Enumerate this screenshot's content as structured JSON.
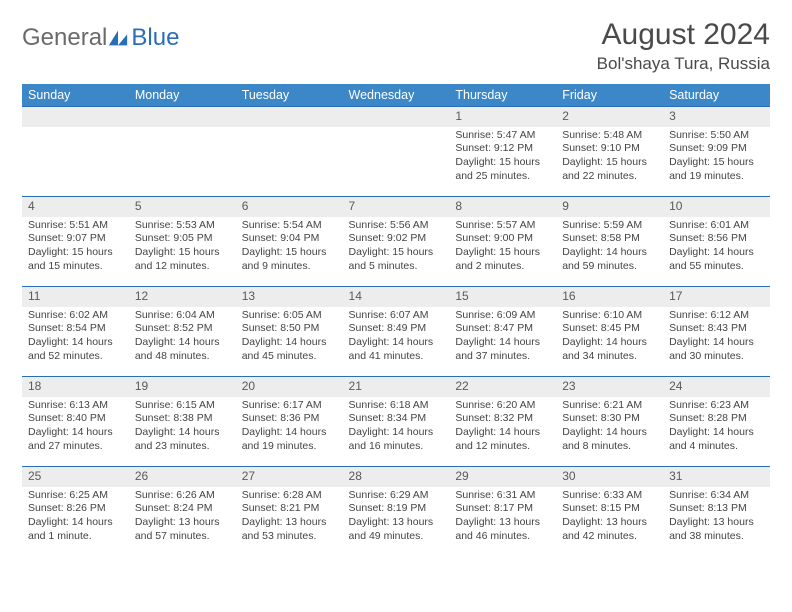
{
  "brand": {
    "general": "General",
    "blue": "Blue"
  },
  "header": {
    "title": "August 2024",
    "location": "Bol'shaya Tura, Russia"
  },
  "colors": {
    "header_bg": "#3b87c8",
    "header_text": "#ffffff",
    "daynum_bg": "#ededed",
    "rule": "#2a6db8",
    "body_text": "#444444"
  },
  "weekdays": [
    "Sunday",
    "Monday",
    "Tuesday",
    "Wednesday",
    "Thursday",
    "Friday",
    "Saturday"
  ],
  "weeks": [
    [
      null,
      null,
      null,
      null,
      {
        "d": "1",
        "sr": "Sunrise: 5:47 AM",
        "ss": "Sunset: 9:12 PM",
        "dl1": "Daylight: 15 hours",
        "dl2": "and 25 minutes."
      },
      {
        "d": "2",
        "sr": "Sunrise: 5:48 AM",
        "ss": "Sunset: 9:10 PM",
        "dl1": "Daylight: 15 hours",
        "dl2": "and 22 minutes."
      },
      {
        "d": "3",
        "sr": "Sunrise: 5:50 AM",
        "ss": "Sunset: 9:09 PM",
        "dl1": "Daylight: 15 hours",
        "dl2": "and 19 minutes."
      }
    ],
    [
      {
        "d": "4",
        "sr": "Sunrise: 5:51 AM",
        "ss": "Sunset: 9:07 PM",
        "dl1": "Daylight: 15 hours",
        "dl2": "and 15 minutes."
      },
      {
        "d": "5",
        "sr": "Sunrise: 5:53 AM",
        "ss": "Sunset: 9:05 PM",
        "dl1": "Daylight: 15 hours",
        "dl2": "and 12 minutes."
      },
      {
        "d": "6",
        "sr": "Sunrise: 5:54 AM",
        "ss": "Sunset: 9:04 PM",
        "dl1": "Daylight: 15 hours",
        "dl2": "and 9 minutes."
      },
      {
        "d": "7",
        "sr": "Sunrise: 5:56 AM",
        "ss": "Sunset: 9:02 PM",
        "dl1": "Daylight: 15 hours",
        "dl2": "and 5 minutes."
      },
      {
        "d": "8",
        "sr": "Sunrise: 5:57 AM",
        "ss": "Sunset: 9:00 PM",
        "dl1": "Daylight: 15 hours",
        "dl2": "and 2 minutes."
      },
      {
        "d": "9",
        "sr": "Sunrise: 5:59 AM",
        "ss": "Sunset: 8:58 PM",
        "dl1": "Daylight: 14 hours",
        "dl2": "and 59 minutes."
      },
      {
        "d": "10",
        "sr": "Sunrise: 6:01 AM",
        "ss": "Sunset: 8:56 PM",
        "dl1": "Daylight: 14 hours",
        "dl2": "and 55 minutes."
      }
    ],
    [
      {
        "d": "11",
        "sr": "Sunrise: 6:02 AM",
        "ss": "Sunset: 8:54 PM",
        "dl1": "Daylight: 14 hours",
        "dl2": "and 52 minutes."
      },
      {
        "d": "12",
        "sr": "Sunrise: 6:04 AM",
        "ss": "Sunset: 8:52 PM",
        "dl1": "Daylight: 14 hours",
        "dl2": "and 48 minutes."
      },
      {
        "d": "13",
        "sr": "Sunrise: 6:05 AM",
        "ss": "Sunset: 8:50 PM",
        "dl1": "Daylight: 14 hours",
        "dl2": "and 45 minutes."
      },
      {
        "d": "14",
        "sr": "Sunrise: 6:07 AM",
        "ss": "Sunset: 8:49 PM",
        "dl1": "Daylight: 14 hours",
        "dl2": "and 41 minutes."
      },
      {
        "d": "15",
        "sr": "Sunrise: 6:09 AM",
        "ss": "Sunset: 8:47 PM",
        "dl1": "Daylight: 14 hours",
        "dl2": "and 37 minutes."
      },
      {
        "d": "16",
        "sr": "Sunrise: 6:10 AM",
        "ss": "Sunset: 8:45 PM",
        "dl1": "Daylight: 14 hours",
        "dl2": "and 34 minutes."
      },
      {
        "d": "17",
        "sr": "Sunrise: 6:12 AM",
        "ss": "Sunset: 8:43 PM",
        "dl1": "Daylight: 14 hours",
        "dl2": "and 30 minutes."
      }
    ],
    [
      {
        "d": "18",
        "sr": "Sunrise: 6:13 AM",
        "ss": "Sunset: 8:40 PM",
        "dl1": "Daylight: 14 hours",
        "dl2": "and 27 minutes."
      },
      {
        "d": "19",
        "sr": "Sunrise: 6:15 AM",
        "ss": "Sunset: 8:38 PM",
        "dl1": "Daylight: 14 hours",
        "dl2": "and 23 minutes."
      },
      {
        "d": "20",
        "sr": "Sunrise: 6:17 AM",
        "ss": "Sunset: 8:36 PM",
        "dl1": "Daylight: 14 hours",
        "dl2": "and 19 minutes."
      },
      {
        "d": "21",
        "sr": "Sunrise: 6:18 AM",
        "ss": "Sunset: 8:34 PM",
        "dl1": "Daylight: 14 hours",
        "dl2": "and 16 minutes."
      },
      {
        "d": "22",
        "sr": "Sunrise: 6:20 AM",
        "ss": "Sunset: 8:32 PM",
        "dl1": "Daylight: 14 hours",
        "dl2": "and 12 minutes."
      },
      {
        "d": "23",
        "sr": "Sunrise: 6:21 AM",
        "ss": "Sunset: 8:30 PM",
        "dl1": "Daylight: 14 hours",
        "dl2": "and 8 minutes."
      },
      {
        "d": "24",
        "sr": "Sunrise: 6:23 AM",
        "ss": "Sunset: 8:28 PM",
        "dl1": "Daylight: 14 hours",
        "dl2": "and 4 minutes."
      }
    ],
    [
      {
        "d": "25",
        "sr": "Sunrise: 6:25 AM",
        "ss": "Sunset: 8:26 PM",
        "dl1": "Daylight: 14 hours",
        "dl2": "and 1 minute."
      },
      {
        "d": "26",
        "sr": "Sunrise: 6:26 AM",
        "ss": "Sunset: 8:24 PM",
        "dl1": "Daylight: 13 hours",
        "dl2": "and 57 minutes."
      },
      {
        "d": "27",
        "sr": "Sunrise: 6:28 AM",
        "ss": "Sunset: 8:21 PM",
        "dl1": "Daylight: 13 hours",
        "dl2": "and 53 minutes."
      },
      {
        "d": "28",
        "sr": "Sunrise: 6:29 AM",
        "ss": "Sunset: 8:19 PM",
        "dl1": "Daylight: 13 hours",
        "dl2": "and 49 minutes."
      },
      {
        "d": "29",
        "sr": "Sunrise: 6:31 AM",
        "ss": "Sunset: 8:17 PM",
        "dl1": "Daylight: 13 hours",
        "dl2": "and 46 minutes."
      },
      {
        "d": "30",
        "sr": "Sunrise: 6:33 AM",
        "ss": "Sunset: 8:15 PM",
        "dl1": "Daylight: 13 hours",
        "dl2": "and 42 minutes."
      },
      {
        "d": "31",
        "sr": "Sunrise: 6:34 AM",
        "ss": "Sunset: 8:13 PM",
        "dl1": "Daylight: 13 hours",
        "dl2": "and 38 minutes."
      }
    ]
  ]
}
